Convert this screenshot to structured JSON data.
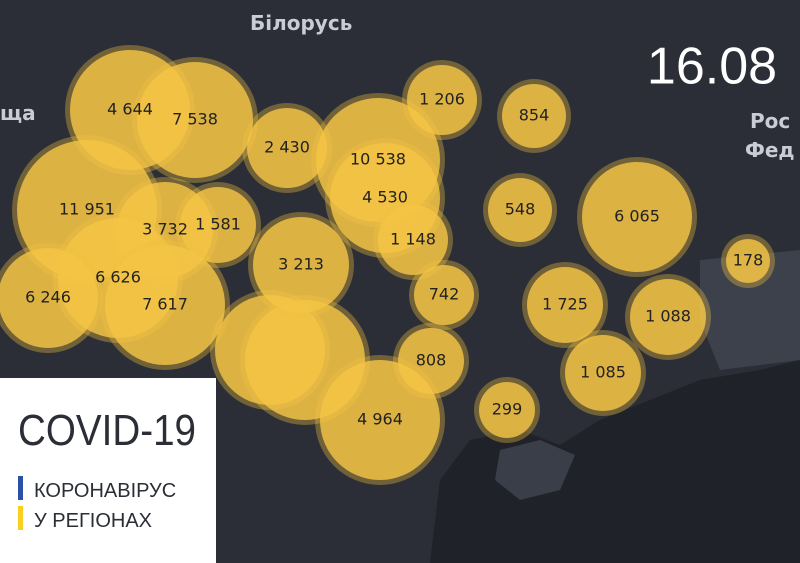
{
  "map": {
    "date": "16.08",
    "places": [
      "Білорусь",
      "ща",
      "Рос",
      "Фед"
    ],
    "bubbles": [
      {
        "label": "4 644"
      },
      {
        "label": "7 538"
      },
      {
        "label": "2 430"
      },
      {
        "label": "10 538"
      },
      {
        "label": "4 530"
      },
      {
        "label": "1 206"
      },
      {
        "label": "854"
      },
      {
        "label": "11 951"
      },
      {
        "label": "3 732"
      },
      {
        "label": "1 581"
      },
      {
        "label": "1 148"
      },
      {
        "label": "548"
      },
      {
        "label": "6 065"
      },
      {
        "label": "178"
      },
      {
        "label": "3 213"
      },
      {
        "label": "6 626"
      },
      {
        "label": "6 246"
      },
      {
        "label": "7 617"
      },
      {
        "label": "742"
      },
      {
        "label": "1 725"
      },
      {
        "label": "1 088"
      },
      {
        "label": "808"
      },
      {
        "label": "1 085"
      },
      {
        "label": "299"
      },
      {
        "label": "4 964"
      }
    ]
  },
  "panel": {
    "title": "COVID-19",
    "line1": "КОРОНАВІРУС",
    "line2": "У РЕГІОНАХ"
  }
}
